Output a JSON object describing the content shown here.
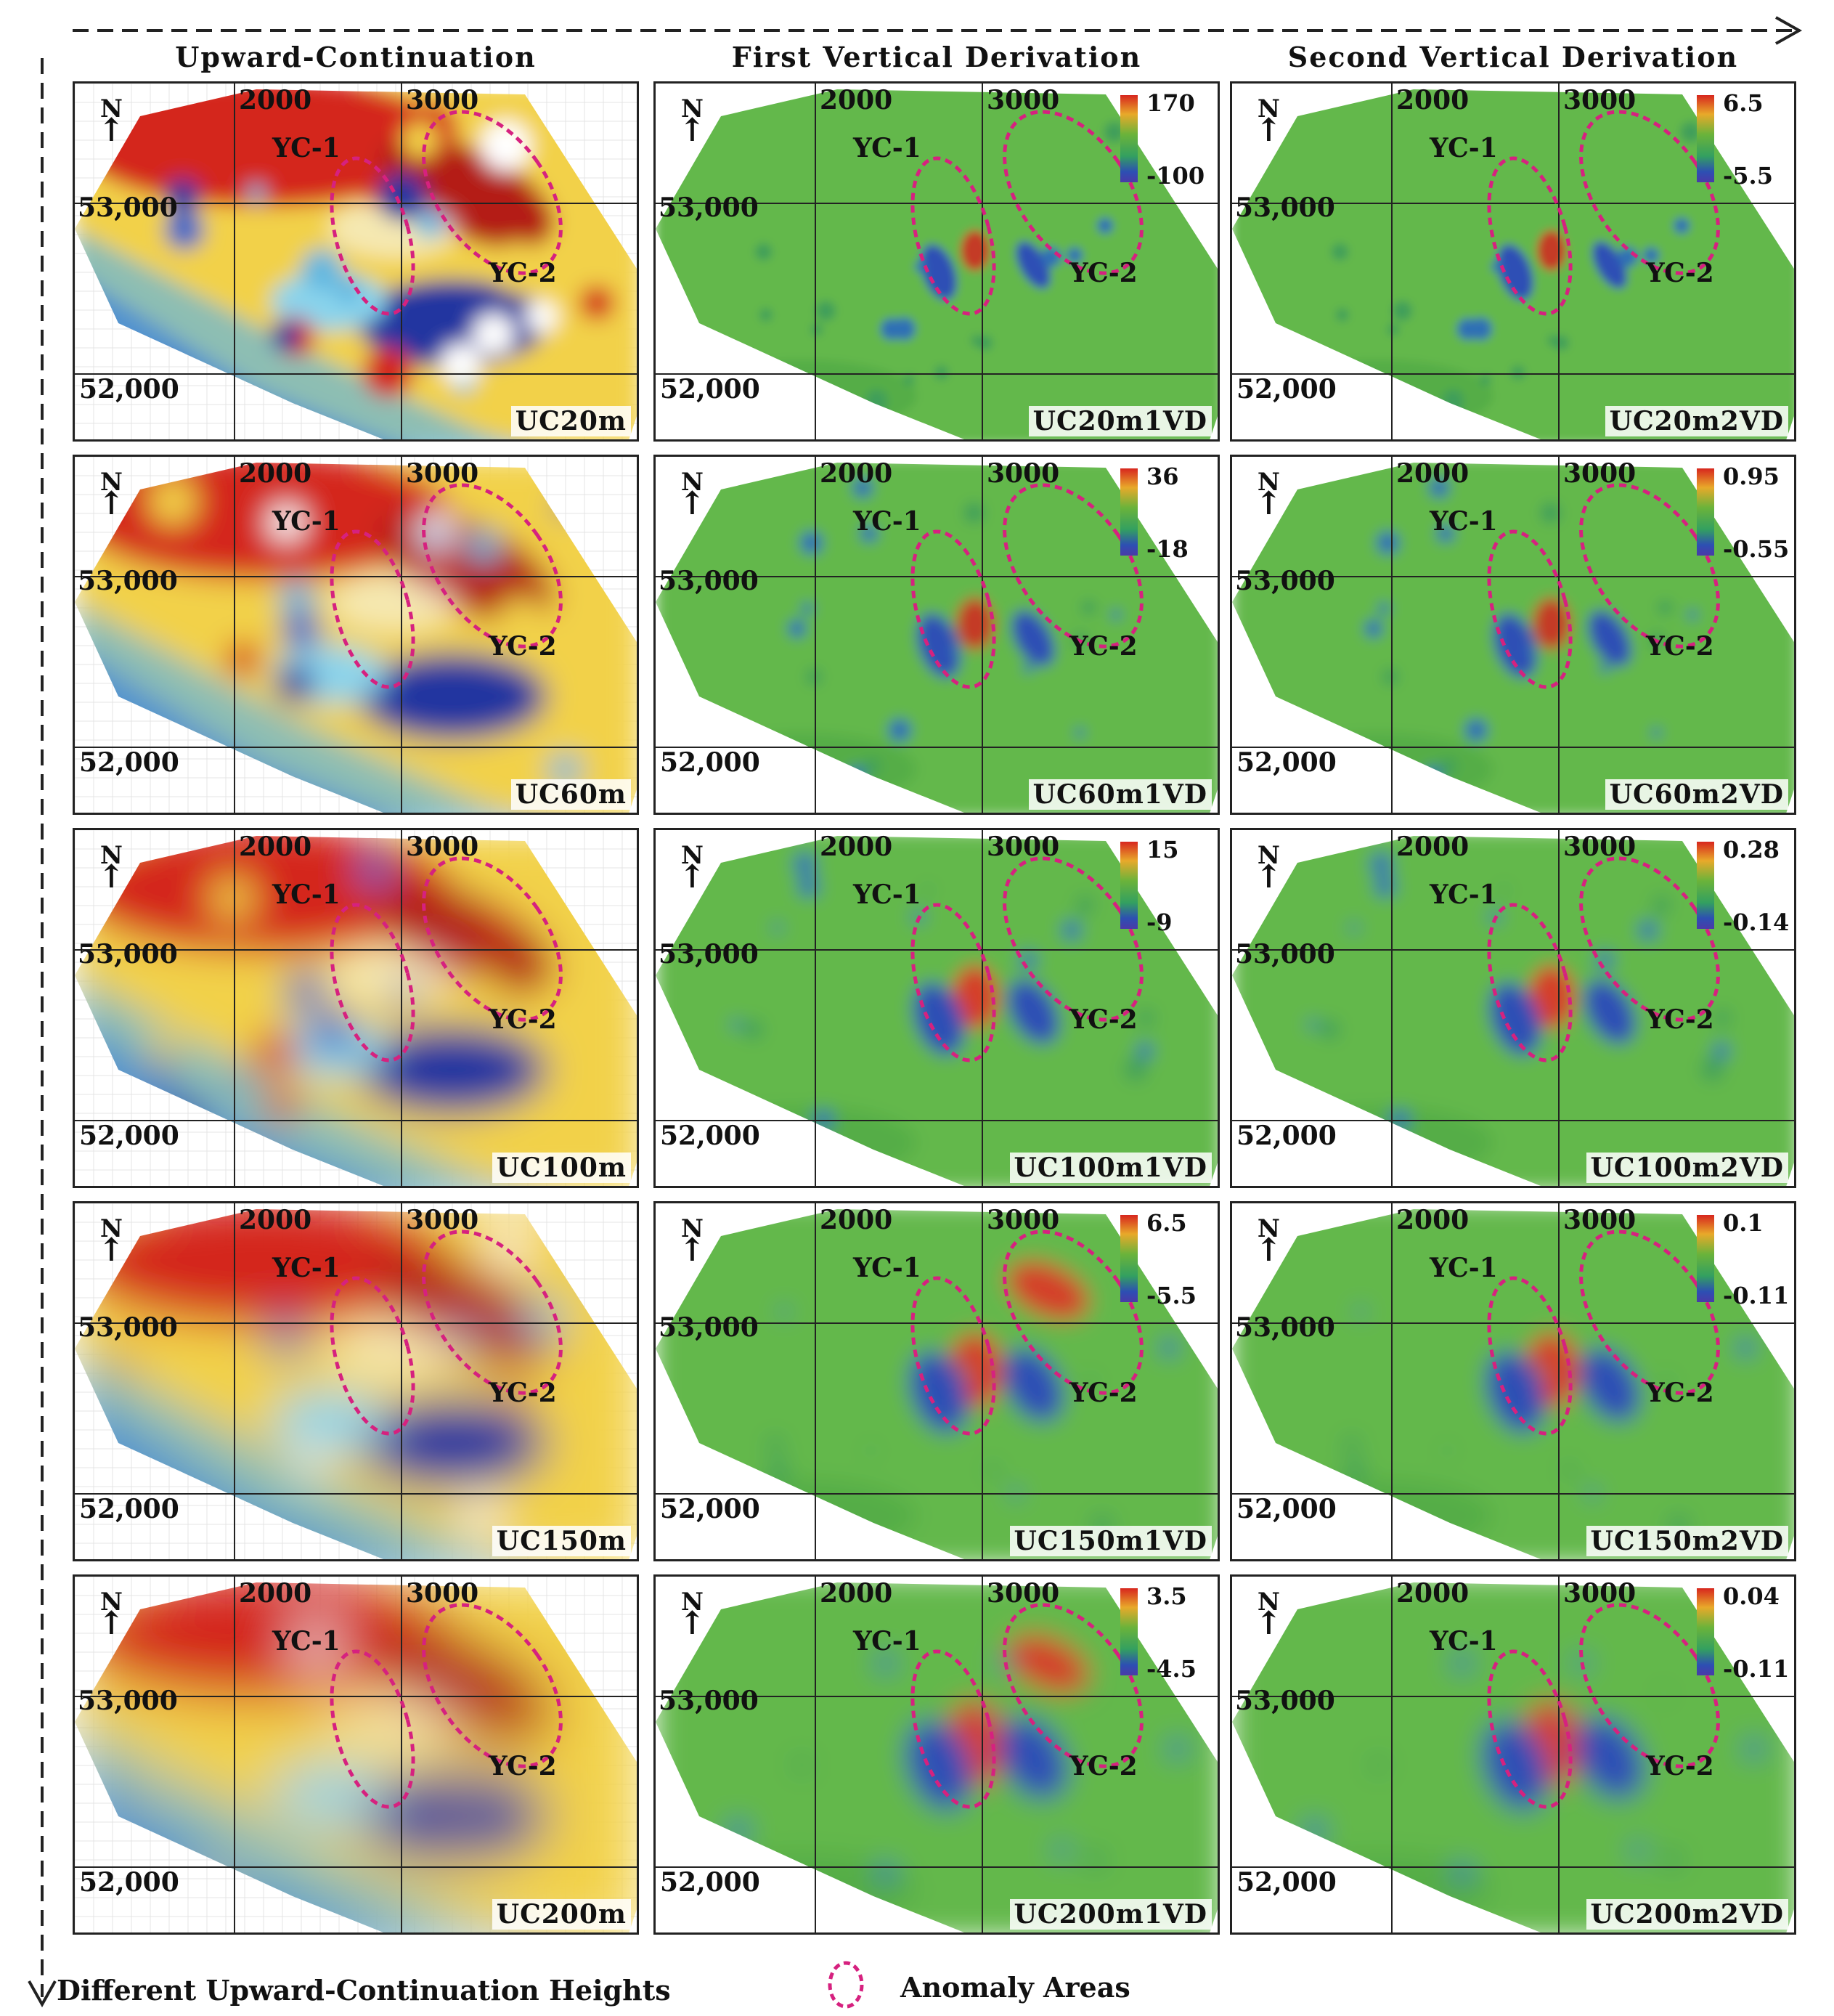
{
  "columns": {
    "uc": "Upward-Continuation",
    "fvd": "First Vertical Derivation",
    "svd": "Second Vertical Derivation"
  },
  "axis_labels": {
    "x1": "2000",
    "x2": "3000",
    "y1": "53,000",
    "y2": "52,000"
  },
  "north": "N",
  "anomalies": {
    "a1": "YC-1",
    "a2": "YC-2"
  },
  "colors": {
    "anomaly_outline": "#d6217f",
    "uc_high": "#c8201a",
    "uc_low": "#1c2c9a",
    "deriv_base": "#62b74a"
  },
  "rows": [
    {
      "uc": "UC20m",
      "fvd": "UC20m1VD",
      "svd": "UC20m2VD",
      "fvd_max": "170",
      "fvd_min": "-100",
      "svd_max": "6.5",
      "svd_min": "-5.5"
    },
    {
      "uc": "UC60m",
      "fvd": "UC60m1VD",
      "svd": "UC60m2VD",
      "fvd_max": "36",
      "fvd_min": "-18",
      "svd_max": "0.95",
      "svd_min": "-0.55"
    },
    {
      "uc": "UC100m",
      "fvd": "UC100m1VD",
      "svd": "UC100m2VD",
      "fvd_max": "15",
      "fvd_min": "-9",
      "svd_max": "0.28",
      "svd_min": "-0.14"
    },
    {
      "uc": "UC150m",
      "fvd": "UC150m1VD",
      "svd": "UC150m2VD",
      "fvd_max": "6.5",
      "fvd_min": "-5.5",
      "svd_max": "0.1",
      "svd_min": "-0.11"
    },
    {
      "uc": "UC200m",
      "fvd": "UC200m1VD",
      "svd": "UC200m2VD",
      "fvd_max": "3.5",
      "fvd_min": "-4.5",
      "svd_max": "0.04",
      "svd_min": "-0.11"
    }
  ],
  "footer": {
    "heights_label": "Different Upward-Continuation Heights",
    "anomaly_legend": "Anomaly Areas"
  }
}
